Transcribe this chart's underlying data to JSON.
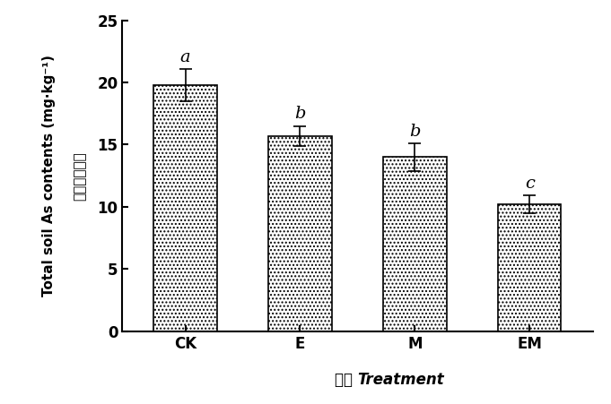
{
  "categories": [
    "CK",
    "E",
    "M",
    "EM"
  ],
  "values": [
    19.8,
    15.7,
    14.0,
    10.2
  ],
  "errors": [
    1.3,
    0.8,
    1.1,
    0.7
  ],
  "letters": [
    "a",
    "b",
    "b",
    "c"
  ],
  "bar_color": "#ffffff",
  "bar_edgecolor": "#000000",
  "hatch": "....",
  "xlabel_chinese": "处理 ",
  "xlabel_english": "Treatment",
  "ylabel_english": "Total soil As contents (mg·kg⁻¹)",
  "ylabel_chinese": "土壤总牀含量",
  "ylim": [
    0,
    25
  ],
  "yticks": [
    0,
    5,
    10,
    15,
    20,
    25
  ],
  "bar_width": 0.55,
  "figsize": [
    6.81,
    4.51
  ],
  "dpi": 100,
  "letter_fontsize": 14,
  "tick_fontsize": 12,
  "xlabel_fontsize": 12,
  "ylabel_fontsize": 11
}
